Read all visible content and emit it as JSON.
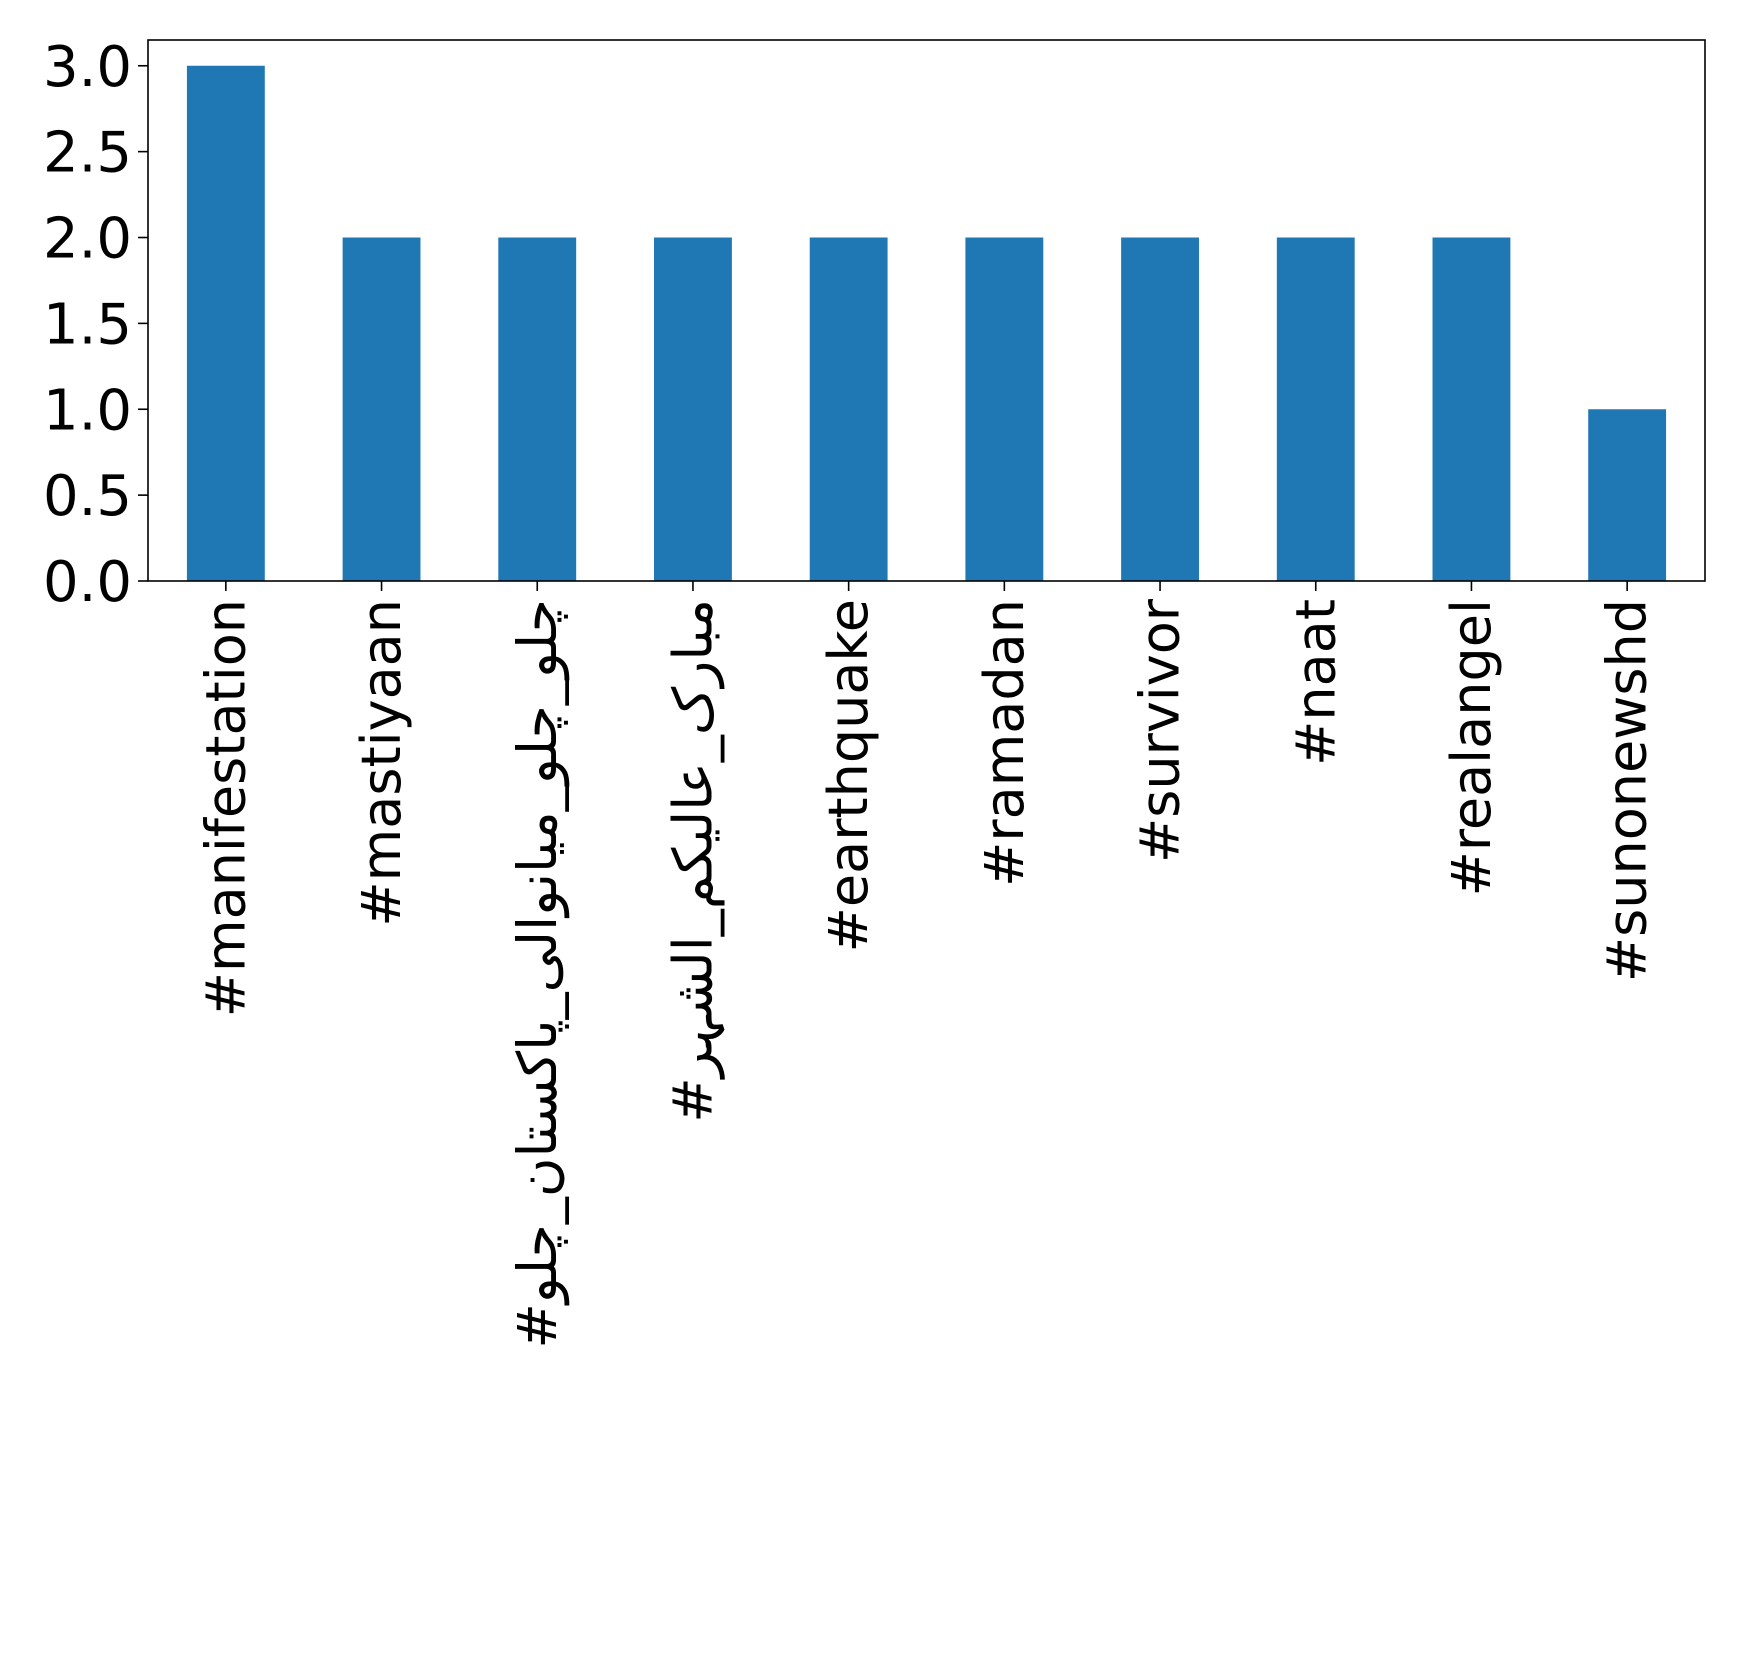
{
  "chart_data": {
    "type": "bar",
    "title": "",
    "xlabel": "",
    "ylabel": "",
    "categories": [
      "#manifestation",
      "#mastiyaan",
      "#چلو_چلو_میانوالی_پاکستان_چلو",
      "#مبارک_عالیکم_الشہر",
      "#earthquake",
      "#ramadan",
      "#survivor",
      "#naat",
      "#realangel",
      "#sunonewshd"
    ],
    "values": [
      3,
      2,
      2,
      2,
      2,
      2,
      2,
      2,
      2,
      1
    ],
    "ylim": [
      0,
      3.15
    ],
    "yticks": [
      "0.0",
      "0.5",
      "1.0",
      "1.5",
      "2.0",
      "2.5",
      "3.0"
    ],
    "grid": false,
    "colors": {
      "bar": "#1f77b4",
      "axis": "#000000",
      "background": "#ffffff"
    }
  }
}
